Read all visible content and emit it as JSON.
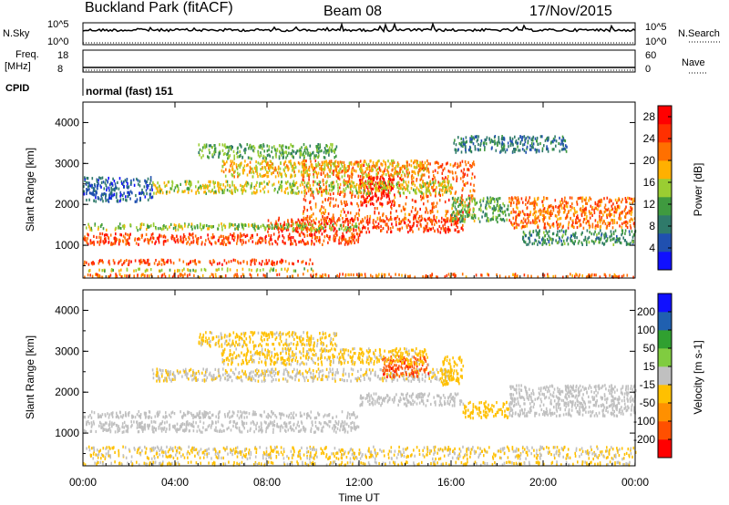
{
  "header": {
    "station": "Buckland Park (fitACF)",
    "beam": "Beam 08",
    "date": "17/Nov/2015"
  },
  "strips": {
    "nsky_label": "N.Sky",
    "nsky_ticks": [
      "10^5",
      "10^0"
    ],
    "nsearch_label": "N.Search",
    "nsearch_ticks": [
      "10^5",
      "10^0"
    ],
    "freq_label": "Freq.",
    "freq_unit": "[MHz]",
    "freq_ticks": [
      "18",
      "8"
    ],
    "nave_label": "Nave",
    "nave_ticks": [
      "60",
      "0"
    ],
    "cpid_label": "CPID",
    "cpid_value": "normal (fast) 151"
  },
  "chart_data": [
    {
      "type": "heatmap",
      "name": "power-panel",
      "ylabel": "Slant Range [km]",
      "xlabel": "Time UT",
      "x_ticks": [
        "00:00",
        "04:00",
        "08:00",
        "12:00",
        "16:00",
        "20:00",
        "00:00"
      ],
      "x_range_hours": [
        0,
        24
      ],
      "y_ticks": [
        1000,
        2000,
        3000,
        4000
      ],
      "y_range": [
        200,
        4500
      ],
      "colorbar": {
        "label": "Power [dB]",
        "ticks": [
          4,
          8,
          12,
          16,
          20,
          24,
          28
        ],
        "range": [
          0,
          30
        ],
        "colors": [
          "#1010ff",
          "#2050b0",
          "#2f7a6a",
          "#3f9a3f",
          "#9acd32",
          "#ffb000",
          "#ff7000",
          "#ff3000",
          "#ff0000"
        ]
      },
      "regions": [
        {
          "t": [
            0,
            24
          ],
          "r": [
            250,
            330
          ],
          "v": 22
        },
        {
          "t": [
            0,
            10
          ],
          "r": [
            560,
            680
          ],
          "v": 24
        },
        {
          "t": [
            0,
            10
          ],
          "r": [
            400,
            460
          ],
          "v": 16
        },
        {
          "t": [
            0,
            12
          ],
          "r": [
            1050,
            1320
          ],
          "v": 24
        },
        {
          "t": [
            8,
            16.5
          ],
          "r": [
            1350,
            1700
          ],
          "v": 25
        },
        {
          "t": [
            9.5,
            17
          ],
          "r": [
            1600,
            3100
          ],
          "v": 23
        },
        {
          "t": [
            12,
            13.5
          ],
          "r": [
            2000,
            2700
          ],
          "v": 29
        },
        {
          "t": [
            0,
            12
          ],
          "r": [
            1400,
            1560
          ],
          "v": 14
        },
        {
          "t": [
            3,
            16
          ],
          "r": [
            2300,
            2600
          ],
          "v": 16
        },
        {
          "t": [
            5,
            11
          ],
          "r": [
            3150,
            3500
          ],
          "v": 12
        },
        {
          "t": [
            6,
            15
          ],
          "r": [
            2700,
            3100
          ],
          "v": 18
        },
        {
          "t": [
            16,
            18.5
          ],
          "r": [
            1600,
            2200
          ],
          "v": 12
        },
        {
          "t": [
            18.5,
            24
          ],
          "r": [
            1450,
            2200
          ],
          "v": 22
        },
        {
          "t": [
            19,
            24
          ],
          "r": [
            1050,
            1400
          ],
          "v": 10
        },
        {
          "t": [
            16,
            21
          ],
          "r": [
            3300,
            3700
          ],
          "v": 8
        },
        {
          "t": [
            0,
            3
          ],
          "r": [
            2100,
            2700
          ],
          "v": 6
        }
      ]
    },
    {
      "type": "heatmap",
      "name": "velocity-panel",
      "ylabel": "Slant Range [km]",
      "xlabel": "Time UT",
      "x_ticks": [
        "00:00",
        "04:00",
        "08:00",
        "12:00",
        "16:00",
        "20:00",
        "00:00"
      ],
      "x_range_hours": [
        0,
        24
      ],
      "y_ticks": [
        1000,
        2000,
        3000,
        4000
      ],
      "y_range": [
        200,
        4500
      ],
      "colorbar": {
        "label": "Velocity [m s-1]",
        "ticks": [
          "200",
          "100",
          "50",
          "15",
          "-15",
          "-50",
          "-100",
          "-200"
        ],
        "range": [
          -250,
          250
        ],
        "colors": [
          "#ff0000",
          "#ff5000",
          "#ff9000",
          "#ffc000",
          "#c0c0c0",
          "#80cc40",
          "#30a030",
          "#2060b0",
          "#1010ff"
        ]
      },
      "regions": [
        {
          "t": [
            0,
            24
          ],
          "r": [
            250,
            330
          ],
          "v": -30
        },
        {
          "t": [
            0,
            12
          ],
          "r": [
            1050,
            1320
          ],
          "v": 0
        },
        {
          "t": [
            0,
            12
          ],
          "r": [
            1400,
            1560
          ],
          "v": 0
        },
        {
          "t": [
            3,
            16
          ],
          "r": [
            2300,
            2600
          ],
          "v": -20
        },
        {
          "t": [
            12,
            16.5
          ],
          "r": [
            1700,
            2000
          ],
          "v": 0
        },
        {
          "t": [
            15.5,
            16.5
          ],
          "r": [
            2200,
            2900
          ],
          "v": -60
        },
        {
          "t": [
            13,
            15
          ],
          "r": [
            2400,
            2900
          ],
          "v": -180
        },
        {
          "t": [
            6,
            15
          ],
          "r": [
            2700,
            3100
          ],
          "v": -40
        },
        {
          "t": [
            16.5,
            18.5
          ],
          "r": [
            1400,
            1800
          ],
          "v": -60
        },
        {
          "t": [
            18.5,
            24
          ],
          "r": [
            1450,
            2200
          ],
          "v": 0
        },
        {
          "t": [
            5,
            11
          ],
          "r": [
            3150,
            3500
          ],
          "v": -40
        },
        {
          "t": [
            0,
            24
          ],
          "r": [
            400,
            700
          ],
          "v": -30
        }
      ]
    }
  ]
}
